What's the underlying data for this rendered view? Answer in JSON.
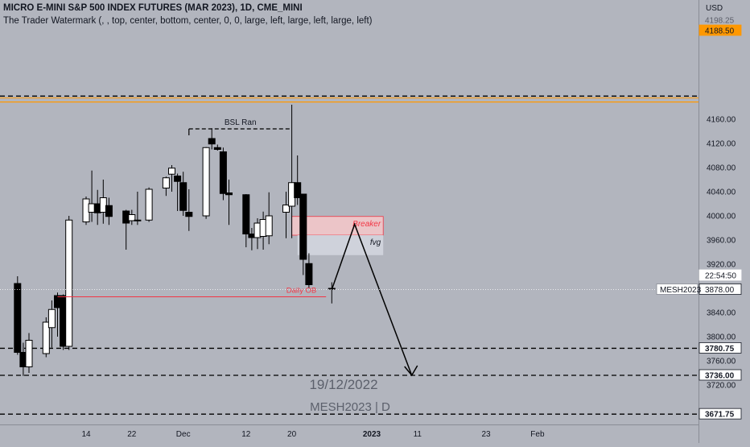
{
  "header": {
    "title": "MICRO E-MINI S&P 500 INDEX FUTURES (MAR 2023), 1D, CME_MINI",
    "subtitle": "The Trader Watermark (, , top, center, bottom, center, 0, 0, large, left, large, left, large, left)"
  },
  "watermark": {
    "date": "19/12/2022",
    "symbol": "MESH2023 | D"
  },
  "colors": {
    "background": "#b2b5be",
    "bull": "#ffffff",
    "bear": "#000000",
    "red_line": "#f23645",
    "orange_line": "#ff9800",
    "breaker_zone": "#f2c6c9",
    "fvg_zone": "#d1d4dc"
  },
  "chart_data": {
    "type": "candlestick",
    "currency": "USD",
    "ylim": [
      3660,
      4205
    ],
    "y_ticks": [
      3720,
      3760,
      3800,
      3840,
      3880,
      3920,
      3960,
      4000,
      4040,
      4080,
      4120,
      4160
    ],
    "x_ticks": [
      {
        "label": "14",
        "date": "2022-11-14"
      },
      {
        "label": "22",
        "date": "2022-11-22"
      },
      {
        "label": "Dec",
        "date": "2022-12-01"
      },
      {
        "label": "12",
        "date": "2022-12-12"
      },
      {
        "label": "20",
        "date": "2022-12-20"
      },
      {
        "label": "2023",
        "date": "2023-01-03"
      },
      {
        "label": "11",
        "date": "2023-01-11"
      },
      {
        "label": "23",
        "date": "2023-01-23"
      },
      {
        "label": "Feb",
        "date": "2023-02-01"
      }
    ],
    "candles": [
      {
        "date": "2022-11-02",
        "open": 3888,
        "high": 3900,
        "low": 3770,
        "close": 3774
      },
      {
        "date": "2022-11-03",
        "open": 3774,
        "high": 3790,
        "low": 3735,
        "close": 3750
      },
      {
        "date": "2022-11-04",
        "open": 3750,
        "high": 3806,
        "low": 3740,
        "close": 3794
      },
      {
        "date": "2022-11-07",
        "open": 3772,
        "high": 3832,
        "low": 3766,
        "close": 3824
      },
      {
        "date": "2022-11-08",
        "open": 3815,
        "high": 3860,
        "low": 3782,
        "close": 3845
      },
      {
        "date": "2022-11-09",
        "open": 3868,
        "high": 3873,
        "low": 3800,
        "close": 3848
      },
      {
        "date": "2022-11-10",
        "open": 3868,
        "high": 3870,
        "low": 3778,
        "close": 3784
      },
      {
        "date": "2022-11-11",
        "open": 3784,
        "high": 4000,
        "low": 3778,
        "close": 3993
      },
      {
        "date": "2022-11-14",
        "open": 3990,
        "high": 4032,
        "low": 3985,
        "close": 4028
      },
      {
        "date": "2022-11-15",
        "open": 4006,
        "high": 4075,
        "low": 3990,
        "close": 4020
      },
      {
        "date": "2022-11-16",
        "open": 4020,
        "high": 4043,
        "low": 3985,
        "close": 4005
      },
      {
        "date": "2022-11-17",
        "open": 4006,
        "high": 4060,
        "low": 3987,
        "close": 4030
      },
      {
        "date": "2022-11-18",
        "open": 4017,
        "high": 4030,
        "low": 3985,
        "close": 3999
      },
      {
        "date": "2022-11-21",
        "open": 4008,
        "high": 4010,
        "low": 3944,
        "close": 3988
      },
      {
        "date": "2022-11-22",
        "open": 3992,
        "high": 4010,
        "low": 3985,
        "close": 4002
      },
      {
        "date": "2022-11-23",
        "open": 3993,
        "high": 4040,
        "low": 3985,
        "close": 3993
      },
      {
        "date": "2022-11-25",
        "open": 3993,
        "high": 4047,
        "low": 3990,
        "close": 4044
      },
      {
        "date": "2022-11-28",
        "open": 4046,
        "high": 4065,
        "low": 4033,
        "close": 4063
      },
      {
        "date": "2022-11-29",
        "open": 4069,
        "high": 4084,
        "low": 4040,
        "close": 4079
      },
      {
        "date": "2022-11-30",
        "open": 4066,
        "high": 4070,
        "low": 4008,
        "close": 4057
      },
      {
        "date": "2022-12-01",
        "open": 4055,
        "high": 4073,
        "low": 4000,
        "close": 4009
      },
      {
        "date": "2022-12-02",
        "open": 4006,
        "high": 4044,
        "low": 3975,
        "close": 3999
      },
      {
        "date": "2022-12-05",
        "open": 4000,
        "high": 4114,
        "low": 3995,
        "close": 4113
      },
      {
        "date": "2022-12-06",
        "open": 4128,
        "high": 4145,
        "low": 4110,
        "close": 4119
      },
      {
        "date": "2022-12-07",
        "open": 4113,
        "high": 4118,
        "low": 4108,
        "close": 4110
      },
      {
        "date": "2022-12-08",
        "open": 4106,
        "high": 4113,
        "low": 4026,
        "close": 4037
      },
      {
        "date": "2022-12-09",
        "open": 4038,
        "high": 4060,
        "low": 3985,
        "close": 4035
      },
      {
        "date": "2022-12-12",
        "open": 4035,
        "high": 4036,
        "low": 3948,
        "close": 3970
      },
      {
        "date": "2022-12-13",
        "open": 3970,
        "high": 3980,
        "low": 3943,
        "close": 3964
      },
      {
        "date": "2022-12-14",
        "open": 3964,
        "high": 3996,
        "low": 3945,
        "close": 3988
      },
      {
        "date": "2022-12-15",
        "open": 3966,
        "high": 4007,
        "low": 3944,
        "close": 3994
      },
      {
        "date": "2022-12-16",
        "open": 3967,
        "high": 4039,
        "low": 3953,
        "close": 4000
      },
      {
        "date": "2022-12-19",
        "open": 4006,
        "high": 4040,
        "low": 3963,
        "close": 4018
      },
      {
        "date": "2022-12-20",
        "open": 4016,
        "high": 4184,
        "low": 3963,
        "close": 4055
      },
      {
        "date": "2022-12-21",
        "open": 4055,
        "high": 4100,
        "low": 4018,
        "close": 4030
      },
      {
        "date": "2022-12-22",
        "open": 4036,
        "high": 4036,
        "low": 3902,
        "close": 3928
      },
      {
        "date": "2022-12-23",
        "open": 3921,
        "high": 3938,
        "low": 3880,
        "close": 3886
      },
      {
        "date": "2022-12-27",
        "open": 3880,
        "high": 3890,
        "low": 3855,
        "close": 3880
      }
    ],
    "price_labels": [
      {
        "text": "4198.25",
        "value": 4198.25
      },
      {
        "text": "4188.50",
        "value": 4188.5
      },
      {
        "text": "3878.00",
        "value": 3878
      },
      {
        "text": "22:54:50",
        "value": 3866
      },
      {
        "text": "3780.75",
        "value": 3780.75
      },
      {
        "text": "3736.00",
        "value": 3736
      },
      {
        "text": "3671.75",
        "value": 3671.75
      }
    ],
    "symbol_label": {
      "text": "MESH2023",
      "value": 3878
    },
    "levels": [
      {
        "name": "dashed-level",
        "value": 4198.25
      },
      {
        "name": "orange-level",
        "value": 4188.5
      },
      {
        "name": "dashed-level",
        "value": 3780.75
      },
      {
        "name": "dashed-level",
        "value": 3736
      },
      {
        "name": "dashed-level",
        "value": 3671.75
      }
    ],
    "zones": [
      {
        "label": "Breaker",
        "top": 3999,
        "bottom": 3968,
        "from": "2022-12-20",
        "to": "2023-01-05"
      },
      {
        "label": "fvg",
        "top": 3968,
        "bottom": 3935,
        "from": "2022-12-21",
        "to": "2023-01-05"
      }
    ],
    "annotations": [
      {
        "text": "BSL Ran",
        "value": 4144,
        "from": "2022-12-02",
        "to": "2022-12-20"
      },
      {
        "text": "Daily OB",
        "value": 3866,
        "from": "2022-11-09",
        "to": "2022-12-26"
      }
    ],
    "projection": [
      {
        "date": "2022-12-27",
        "value": 3878
      },
      {
        "date": "2022-12-31",
        "value": 3986
      },
      {
        "date": "2023-01-10",
        "value": 3736
      }
    ]
  }
}
